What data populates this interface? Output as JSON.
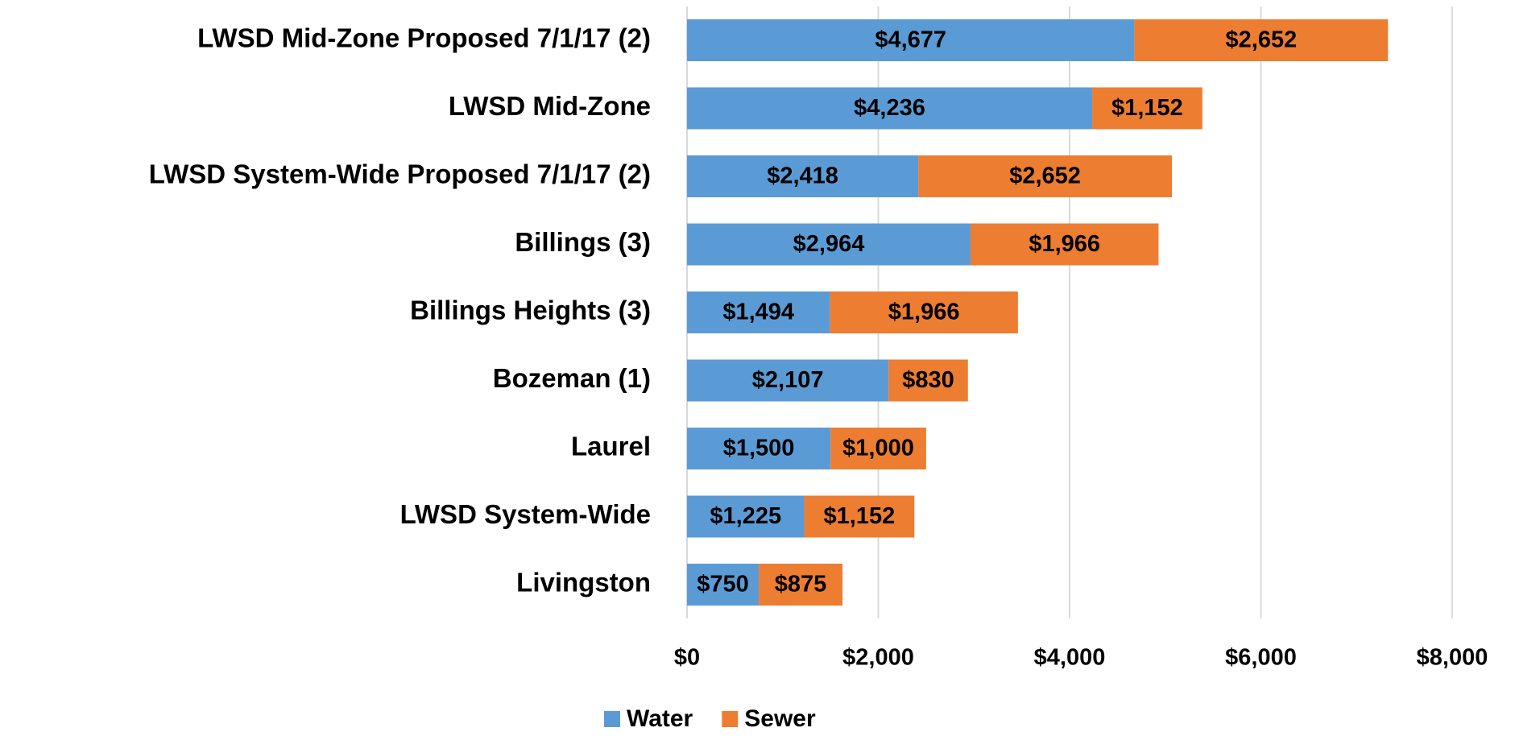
{
  "chart_data": {
    "type": "stacked_bar_horizontal",
    "categories": [
      "LWSD Mid-Zone Proposed 7/1/17 (2)",
      "LWSD Mid-Zone",
      "LWSD System-Wide Proposed 7/1/17 (2)",
      "Billings (3)",
      "Billings Heights (3)",
      "Bozeman (1)",
      "Laurel",
      "LWSD System-Wide",
      "Livingston"
    ],
    "series": [
      {
        "name": "Water",
        "color": "#5b9bd5",
        "values": [
          4677,
          4236,
          2418,
          2964,
          1494,
          2107,
          1500,
          1225,
          750
        ],
        "value_labels": [
          "$4,677",
          "$4,236",
          "$2,418",
          "$2,964",
          "$1,494",
          "$2,107",
          "$1,500",
          "$1,225",
          "$750"
        ]
      },
      {
        "name": "Sewer",
        "color": "#ed7d31",
        "values": [
          2652,
          1152,
          2652,
          1966,
          1966,
          830,
          1000,
          1152,
          875
        ],
        "value_labels": [
          "$2,652",
          "$1,152",
          "$2,652",
          "$1,966",
          "$1,966",
          "$830",
          "$1,000",
          "$1,152",
          "$875"
        ]
      }
    ],
    "xlim": [
      0,
      8000
    ],
    "xticks": [
      {
        "value": 0,
        "label": "$0"
      },
      {
        "value": 2000,
        "label": "$2,000"
      },
      {
        "value": 4000,
        "label": "$4,000"
      },
      {
        "value": 6000,
        "label": "$6,000"
      },
      {
        "value": 8000,
        "label": "$8,000"
      }
    ],
    "grid": true,
    "legend": "bottom"
  }
}
